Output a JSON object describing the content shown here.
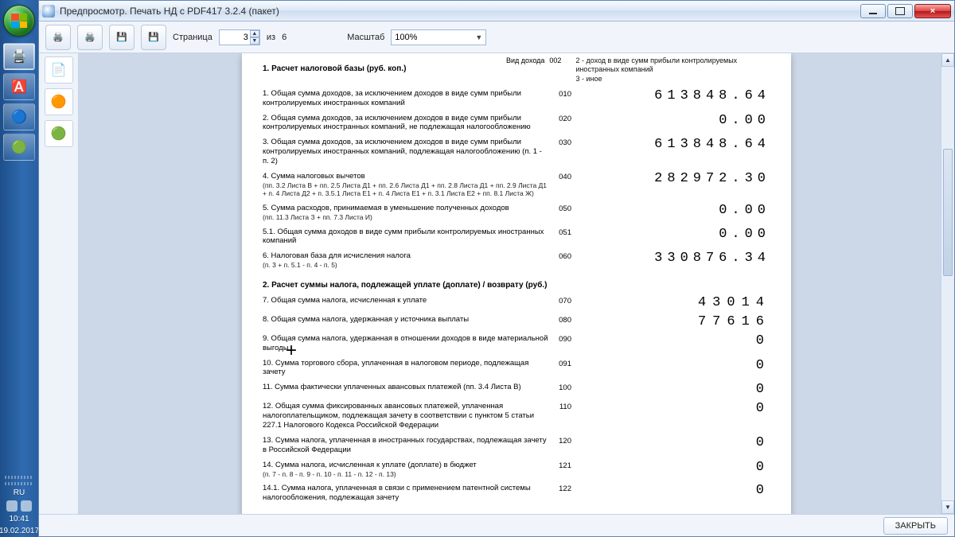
{
  "window": {
    "title": "Предпросмотр. Печать НД с PDF417 3.2.4 (пакет)"
  },
  "toolbar": {
    "page_label": "Страница",
    "page_value": "3",
    "of_label": "из",
    "total_pages": "6",
    "scale_label": "Масштаб",
    "scale_value": "100%"
  },
  "buttons": {
    "close_label": "ЗАКРЫТЬ"
  },
  "header": {
    "sec1_trunc": "1. Расчет налоговой базы (руб. коп.)",
    "vid_dohoda": "Вид дохода",
    "vid_code": "002",
    "note2": "2 - доход в виде сумм прибыли контролируемых иностранных компаний",
    "note3": "3 - иное"
  },
  "rows": [
    {
      "desc": "1. Общая сумма доходов, за исключением доходов в виде сумм прибыли контролируемых иностранных компаний",
      "code": "010",
      "val": "613848.64"
    },
    {
      "desc": "2. Общая сумма доходов, за исключением доходов в виде сумм прибыли контролируемых иностранных компаний, не подлежащая налогообложению",
      "code": "020",
      "val": "0.00"
    },
    {
      "desc": "3. Общая сумма доходов, за исключением доходов в виде сумм прибыли контролируемых иностранных компаний, подлежащая налогообложению (п. 1 - п. 2)",
      "code": "030",
      "val": "613848.64"
    },
    {
      "desc": "4. Сумма налоговых вычетов",
      "small": "(пп. 3.2 Листа В + пп. 2.5 Листа Д1 + пп. 2.6 Листа Д1 + пп. 2.8 Листа Д1 + пп. 2.9 Листа Д1 + п. 4 Листа Д2 + п. 3.5.1 Листа Е1 + п. 4 Листа Е1 + п. 3.1 Листа Е2 + пп. 8.1 Листа Ж)",
      "code": "040",
      "val": "282972.30"
    },
    {
      "desc": "5. Сумма расходов, принимаемая в уменьшение полученных доходов",
      "small": "(пп. 11.3 Листа З + пп. 7.3 Листа И)",
      "code": "050",
      "val": "0.00"
    },
    {
      "desc": "5.1. Общая сумма доходов в виде сумм прибыли контролируемых иностранных компаний",
      "code": "051",
      "val": "0.00"
    },
    {
      "desc": "6. Налоговая база для исчисления налога",
      "small": "(п. 3 + п. 5.1 - п. 4 - п. 5)",
      "code": "060",
      "val": "330876.34"
    }
  ],
  "section2_title": "2. Расчет суммы налога, подлежащей уплате (доплате) / возврату (руб.)",
  "rows2": [
    {
      "desc": "7. Общая сумма налога, исчисленная к уплате",
      "code": "070",
      "val": "43014"
    },
    {
      "desc": "8. Общая сумма налога, удержанная у источника выплаты",
      "code": "080",
      "val": "77616"
    },
    {
      "desc": "9. Общая сумма налога, удержанная в отношении доходов в виде материальной выгоды",
      "code": "090",
      "val": "0"
    },
    {
      "desc": "10. Сумма торгового сбора, уплаченная в налоговом периоде, подлежащая зачету",
      "code": "091",
      "val": "0"
    },
    {
      "desc": "11. Сумма фактически уплаченных авансовых платежей (пп. 3.4 Листа В)",
      "code": "100",
      "val": "0"
    },
    {
      "desc": "12. Общая сумма фиксированных авансовых платежей, уплаченная налогоплательщиком, подлежащая зачету в соответствии с пунктом 5 статьи 227.1 Налогового Кодекса Российской Федерации",
      "code": "110",
      "val": "0"
    },
    {
      "desc": "13. Сумма налога, уплаченная в иностранных государствах, подлежащая зачету в Российской Федерации",
      "code": "120",
      "val": "0"
    },
    {
      "desc": "14. Сумма налога, исчисленная к уплате (доплате) в бюджет",
      "small": "(п. 7 - п. 8 - п. 9 - п. 10 - п. 11 - п. 12 - п. 13)",
      "code": "121",
      "val": "0"
    },
    {
      "desc": "14.1. Сумма налога, уплаченная в связи с применением патентной системы налогообложения, подлежащая зачету",
      "code": "122",
      "val": "0"
    }
  ],
  "tray": {
    "lang": "RU",
    "time": "10:41",
    "date": "19.02.2017"
  },
  "colors": {
    "accent": "#2f6bb0"
  }
}
